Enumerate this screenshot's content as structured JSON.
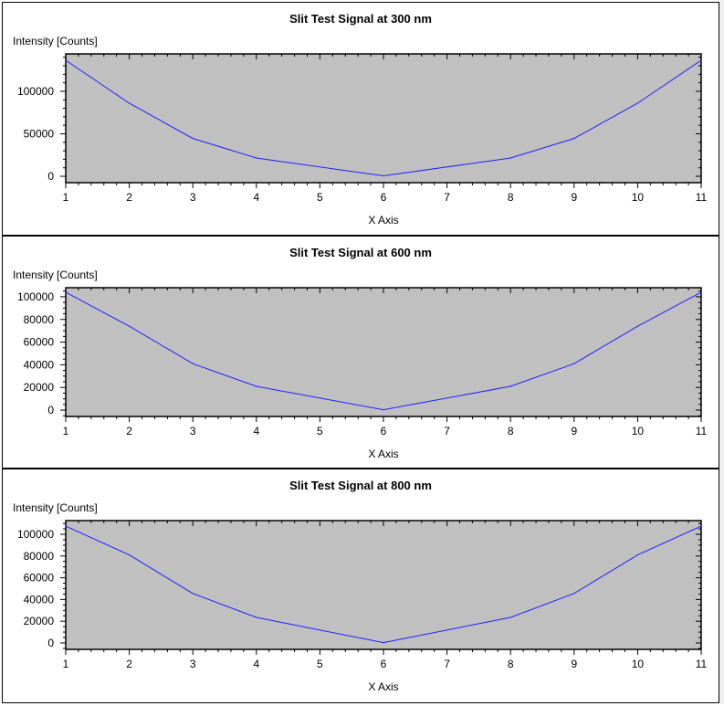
{
  "chart_data": [
    {
      "type": "line",
      "title": "Slit Test Signal at 300 nm",
      "xlabel": "X Axis",
      "ylabel": "Intensity [Counts]",
      "xlim": [
        1,
        11
      ],
      "ylim": [
        -7500,
        144000
      ],
      "xticks": [
        1,
        2,
        3,
        4,
        5,
        6,
        7,
        8,
        9,
        10,
        11
      ],
      "yticks": [
        0,
        50000,
        100000
      ],
      "ytick_labels": [
        "0",
        "50000",
        "100000"
      ],
      "y_minor_step": 10000,
      "grid": false,
      "plot_background": "#c0c0c0",
      "series": [
        {
          "color": "#2020ff",
          "x": [
            1,
            2,
            3,
            4,
            6,
            8,
            9,
            10,
            11
          ],
          "y": [
            136500,
            86000,
            44500,
            21500,
            500,
            21500,
            44500,
            86000,
            136500
          ]
        }
      ]
    },
    {
      "type": "line",
      "title": "Slit Test Signal at 600 nm",
      "xlabel": "X Axis",
      "ylabel": "Intensity [Counts]",
      "xlim": [
        1,
        11
      ],
      "ylim": [
        -5600,
        108000
      ],
      "xticks": [
        1,
        2,
        3,
        4,
        5,
        6,
        7,
        8,
        9,
        10,
        11
      ],
      "yticks": [
        0,
        20000,
        40000,
        60000,
        80000,
        100000
      ],
      "ytick_labels": [
        "0",
        "20000",
        "40000",
        "60000",
        "80000",
        "100000"
      ],
      "y_minor_step": 5000,
      "grid": false,
      "plot_background": "#c0c0c0",
      "series": [
        {
          "color": "#2020ff",
          "x": [
            1,
            2,
            3,
            4,
            6,
            8,
            9,
            10,
            11
          ],
          "y": [
            104000,
            74000,
            41000,
            21000,
            300,
            21000,
            41000,
            74000,
            104000
          ]
        }
      ]
    },
    {
      "type": "line",
      "title": "Slit Test Signal at 800 nm",
      "xlabel": "X Axis",
      "ylabel": "Intensity [Counts]",
      "xlim": [
        1,
        11
      ],
      "ylim": [
        -5900,
        112600
      ],
      "xticks": [
        1,
        2,
        3,
        4,
        5,
        6,
        7,
        8,
        9,
        10,
        11
      ],
      "yticks": [
        0,
        20000,
        40000,
        60000,
        80000,
        100000
      ],
      "ytick_labels": [
        "0",
        "20000",
        "40000",
        "60000",
        "80000",
        "100000"
      ],
      "y_minor_step": 5000,
      "grid": false,
      "plot_background": "#c0c0c0",
      "series": [
        {
          "color": "#2020ff",
          "x": [
            1,
            2,
            3,
            4,
            6,
            8,
            9,
            10,
            11
          ],
          "y": [
            107500,
            81000,
            45500,
            23500,
            300,
            23500,
            45500,
            81000,
            107500
          ]
        }
      ]
    }
  ]
}
